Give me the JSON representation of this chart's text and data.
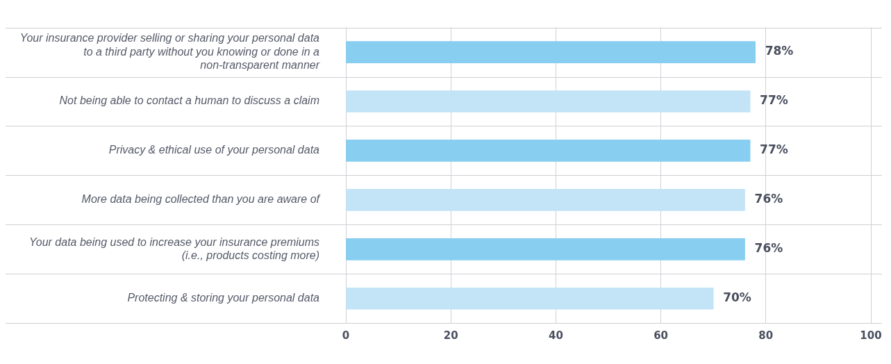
{
  "chart_data": {
    "type": "bar",
    "orientation": "horizontal",
    "categories": [
      "Your insurance provider selling or sharing your personal data to a third party without you knowing or done in a non-transparent manner",
      "Not being able to contact a human to discuss a claim",
      "Privacy & ethical use of your personal data",
      "More data being collected than you are aware of",
      "Your data being used to increase your insurance premiums (i.e., products costing more)",
      "Protecting & storing your personal data"
    ],
    "values": [
      78,
      77,
      77,
      76,
      76,
      70
    ],
    "colors": [
      "#87cef0",
      "#c2e4f6",
      "#87cef0",
      "#c2e4f6",
      "#87cef0",
      "#c2e4f6"
    ],
    "value_labels": [
      "78%",
      "77%",
      "77%",
      "76%",
      "76%",
      "70%"
    ],
    "xlim": [
      0,
      100
    ],
    "xticks": [
      0,
      20,
      40,
      60,
      80,
      100
    ],
    "grid": true,
    "legend": false
  }
}
